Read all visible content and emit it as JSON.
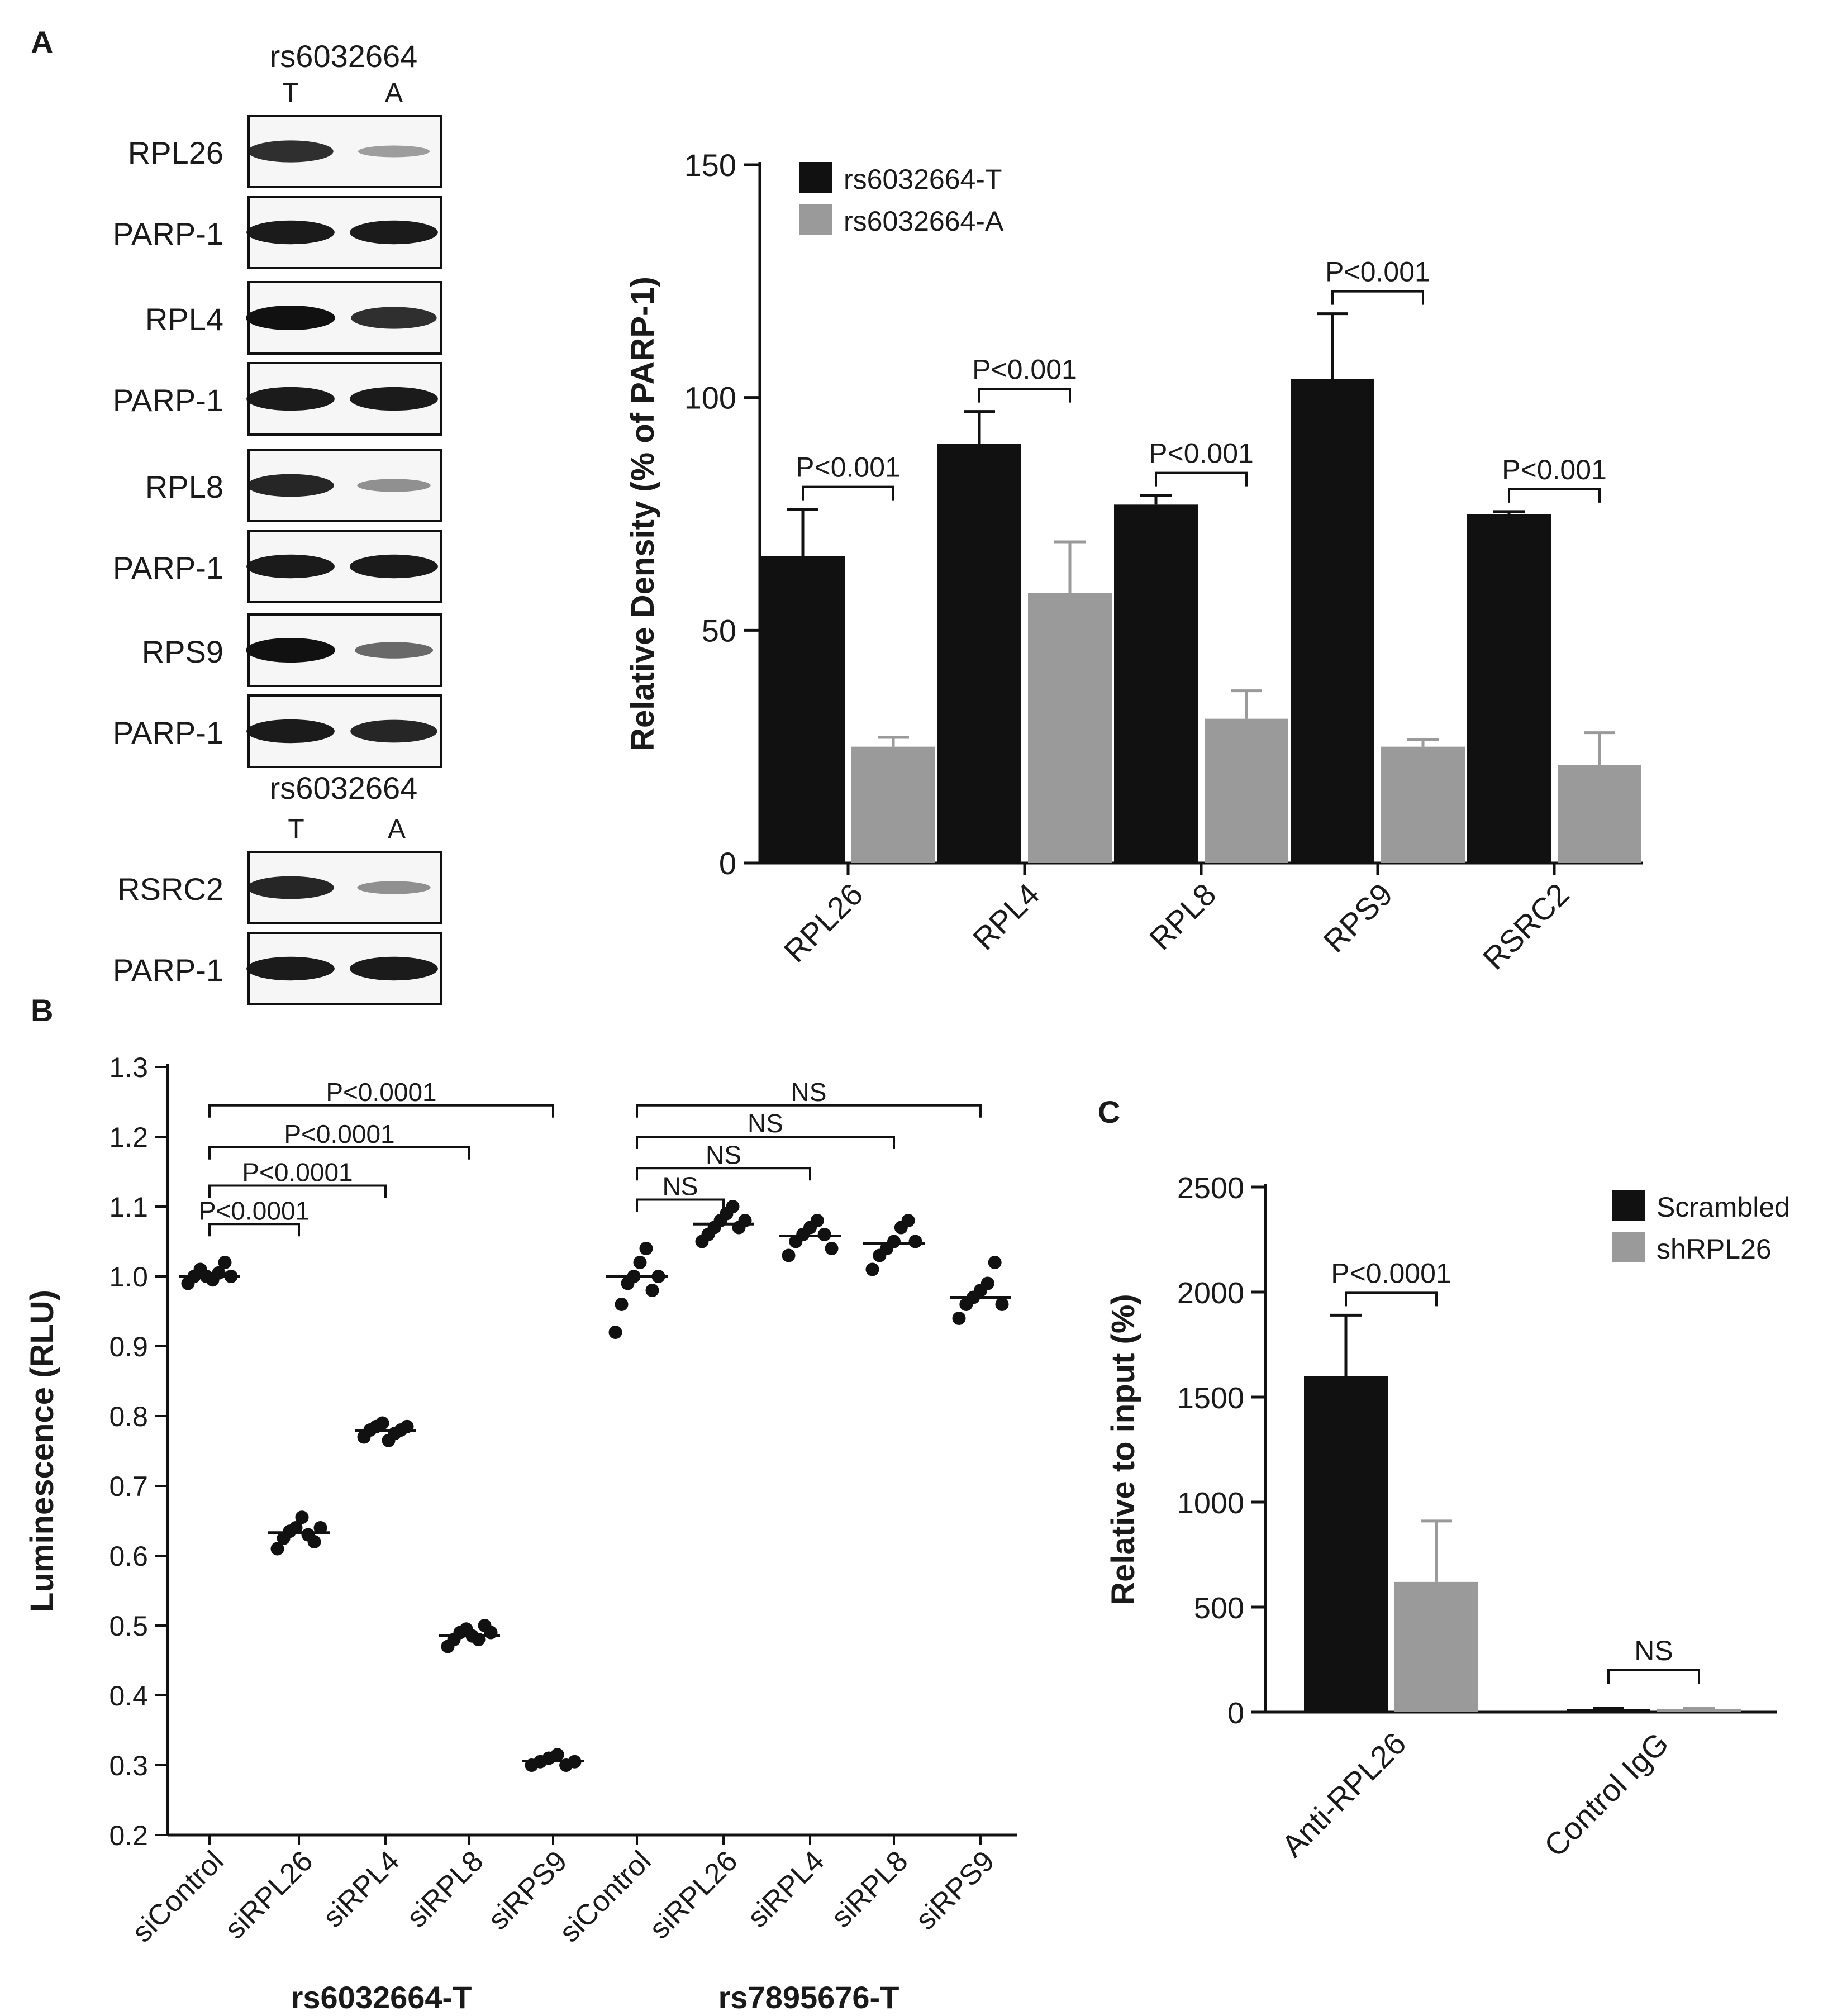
{
  "panel_labels": {
    "a": "A",
    "b": "B",
    "c": "C"
  },
  "chart_data": [
    {
      "type": "western-blot",
      "panel": "A",
      "header_snp": "rs6032664",
      "header_alleles": [
        "T",
        "A"
      ],
      "header_snp_2": "rs6032664",
      "header_alleles_2": [
        "T",
        "A"
      ],
      "blots": [
        {
          "label": "RPL26",
          "intensity": [
            0.85,
            0.28
          ]
        },
        {
          "label": "PARP-1",
          "intensity": [
            0.95,
            0.95
          ]
        },
        {
          "label": "RPL4",
          "intensity": [
            1.0,
            0.85
          ]
        },
        {
          "label": "PARP-1",
          "intensity": [
            0.95,
            0.95
          ]
        },
        {
          "label": "RPL8",
          "intensity": [
            0.9,
            0.35
          ]
        },
        {
          "label": "PARP-1",
          "intensity": [
            0.95,
            0.95
          ]
        },
        {
          "label": "RPS9",
          "intensity": [
            1.0,
            0.55
          ]
        },
        {
          "label": "PARP-1",
          "intensity": [
            0.95,
            0.9
          ]
        },
        {
          "label": "RSRC2",
          "intensity": [
            0.9,
            0.35
          ]
        },
        {
          "label": "PARP-1",
          "intensity": [
            0.95,
            0.95
          ]
        }
      ]
    },
    {
      "type": "bar",
      "panel": "A",
      "categories": [
        "RPL26",
        "RPL4",
        "RPL8",
        "RPS9",
        "RSRC2"
      ],
      "series": [
        {
          "name": "rs6032664-T",
          "color": "#111111",
          "values": [
            66,
            90,
            77,
            104,
            75
          ],
          "errors": [
            10,
            7,
            2,
            14,
            0.5
          ]
        },
        {
          "name": "rs6032664-A",
          "color": "#9a9a9a",
          "values": [
            25,
            58,
            31,
            25,
            21
          ],
          "errors": [
            2,
            11,
            6,
            1.5,
            7
          ]
        }
      ],
      "ylabel": "Relative Density (% of PARP-1)",
      "ylim": [
        0,
        150
      ],
      "yticks": [
        0,
        50,
        100,
        150
      ],
      "annotations": [
        "P<0.001",
        "P<0.001",
        "P<0.001",
        "P<0.001",
        "P<0.001"
      ],
      "legend": "top-left"
    },
    {
      "type": "scatter",
      "panel": "B",
      "ylabel": "Luminescence (RLU)",
      "ylim": [
        0.2,
        1.3
      ],
      "yticks": [
        "0.2",
        "0.3",
        "0.4",
        "0.5",
        "0.6",
        "0.7",
        "0.8",
        "0.9",
        "1.0",
        "1.1",
        "1.2",
        "1.3"
      ],
      "categories": [
        "siControl",
        "siRPL26",
        "siRPL4",
        "siRPL8",
        "siRPS9",
        "siControl",
        "siRPL26",
        "siRPL4",
        "siRPL8",
        "siRPS9"
      ],
      "groups": [
        {
          "label": "rs6032664-T",
          "span": [
            0,
            4
          ]
        },
        {
          "label": "rs7895676-T",
          "span": [
            5,
            9
          ]
        }
      ],
      "points": [
        [
          0.99,
          1.0,
          1.01,
          1.0,
          0.995,
          1.005,
          1.02,
          1.0
        ],
        [
          0.61,
          0.625,
          0.635,
          0.64,
          0.655,
          0.63,
          0.62,
          0.64
        ],
        [
          0.77,
          0.78,
          0.785,
          0.79,
          0.765,
          0.775,
          0.78,
          0.785
        ],
        [
          0.47,
          0.48,
          0.49,
          0.495,
          0.485,
          0.48,
          0.5,
          0.49
        ],
        [
          0.3,
          0.305,
          0.31,
          0.315,
          0.3,
          0.305
        ],
        [
          0.92,
          0.96,
          0.99,
          1.0,
          1.02,
          1.04,
          0.98,
          1.0
        ],
        [
          1.05,
          1.06,
          1.07,
          1.08,
          1.09,
          1.1,
          1.07,
          1.08
        ],
        [
          1.03,
          1.05,
          1.06,
          1.07,
          1.08,
          1.06,
          1.04
        ],
        [
          1.01,
          1.03,
          1.04,
          1.05,
          1.07,
          1.08,
          1.05
        ],
        [
          0.94,
          0.96,
          0.97,
          0.98,
          0.99,
          1.02,
          0.96
        ]
      ],
      "means": [
        1.0,
        0.633,
        0.779,
        0.486,
        0.306,
        1.0,
        1.075,
        1.058,
        1.047,
        0.97
      ],
      "comparisons": [
        {
          "from": 0,
          "to": 1,
          "label": "P<0.0001",
          "level": 1.075
        },
        {
          "from": 0,
          "to": 2,
          "label": "P<0.0001",
          "level": 1.13
        },
        {
          "from": 0,
          "to": 3,
          "label": "P<0.0001",
          "level": 1.185
        },
        {
          "from": 0,
          "to": 4,
          "label": "P<0.0001",
          "level": 1.245
        },
        {
          "from": 5,
          "to": 6,
          "label": "NS",
          "level": 1.11
        },
        {
          "from": 5,
          "to": 7,
          "label": "NS",
          "level": 1.155
        },
        {
          "from": 5,
          "to": 8,
          "label": "NS",
          "level": 1.2
        },
        {
          "from": 5,
          "to": 9,
          "label": "NS",
          "level": 1.245
        }
      ]
    },
    {
      "type": "bar",
      "panel": "C",
      "categories": [
        "Anti-RPL26",
        "Control IgG"
      ],
      "series": [
        {
          "name": "Scrambled",
          "color": "#111111",
          "values": [
            1600,
            15
          ],
          "errors": [
            290,
            5
          ]
        },
        {
          "name": "shRPL26",
          "color": "#9a9a9a",
          "values": [
            620,
            15
          ],
          "errors": [
            290,
            5
          ]
        }
      ],
      "ylabel": "Relative to input (%)",
      "ylim": [
        0,
        2500
      ],
      "yticks": [
        0,
        500,
        1000,
        1500,
        2000,
        2500
      ],
      "annotations": [
        "P<0.0001",
        "NS"
      ],
      "legend": "top-right"
    }
  ]
}
